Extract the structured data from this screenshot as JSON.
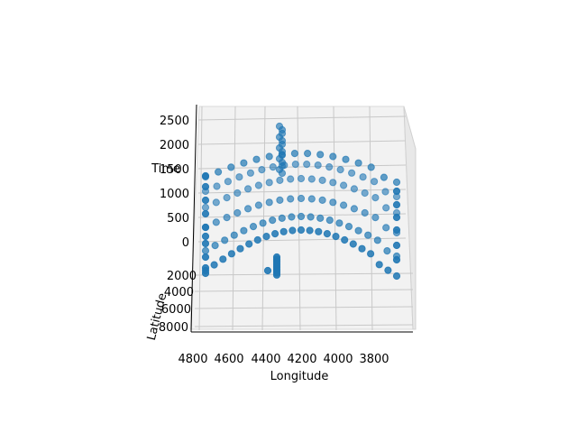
{
  "chart_data": {
    "type": "scatter",
    "projection": "3d",
    "title": "",
    "xlabel": "Longitude",
    "ylabel": "Latitude",
    "zlabel": "Time",
    "x_ticks": [
      "4800",
      "4600",
      "4400",
      "4200",
      "4000",
      "3800"
    ],
    "y_ticks": [
      "2000",
      "4000",
      "6000",
      "8000"
    ],
    "z_ticks": [
      "0",
      "500",
      "1000",
      "1500",
      "2000",
      "2500"
    ],
    "xlim": [
      3650,
      4800
    ],
    "ylim": [
      0,
      8000
    ],
    "zlim": [
      -250,
      2600
    ],
    "grid": true,
    "legend": "none",
    "marker_color": "#1f77b4",
    "pane_color": "#f2f2f2",
    "series": [
      {
        "arcs": [
          {
            "time": 0,
            "lat": 0,
            "n": 23
          },
          {
            "time": 500,
            "lat": 0,
            "n": 21
          },
          {
            "time": 1000,
            "lat": 0,
            "n": 19
          },
          {
            "time": 1500,
            "lat": 0,
            "n": 16
          }
        ],
        "upper_arc_points": [
          [
            4800,
            0,
            0
          ],
          [
            4750,
            0,
            0
          ],
          [
            4690,
            0,
            0
          ],
          [
            4620,
            0,
            0
          ],
          [
            4550,
            0,
            0
          ],
          [
            4480,
            0,
            0
          ],
          [
            4420,
            0,
            0
          ],
          [
            4350,
            0,
            0
          ],
          [
            4290,
            0,
            0
          ],
          [
            4230,
            0,
            0
          ],
          [
            4170,
            0,
            0
          ],
          [
            4110,
            0,
            0
          ],
          [
            4050,
            0,
            0
          ],
          [
            3990,
            0,
            0
          ],
          [
            3930,
            0,
            0
          ],
          [
            3870,
            0,
            0
          ],
          [
            3820,
            0,
            0
          ],
          [
            3760,
            0,
            0
          ],
          [
            3710,
            0,
            0
          ]
        ],
        "vertical_column": {
          "lon": 4340,
          "time_from": 1100,
          "time_to": 2450,
          "n": 14
        },
        "lower_column": {
          "lon": 4330,
          "lat_from": 0,
          "lat_to": 1800,
          "n": 10
        }
      }
    ]
  }
}
